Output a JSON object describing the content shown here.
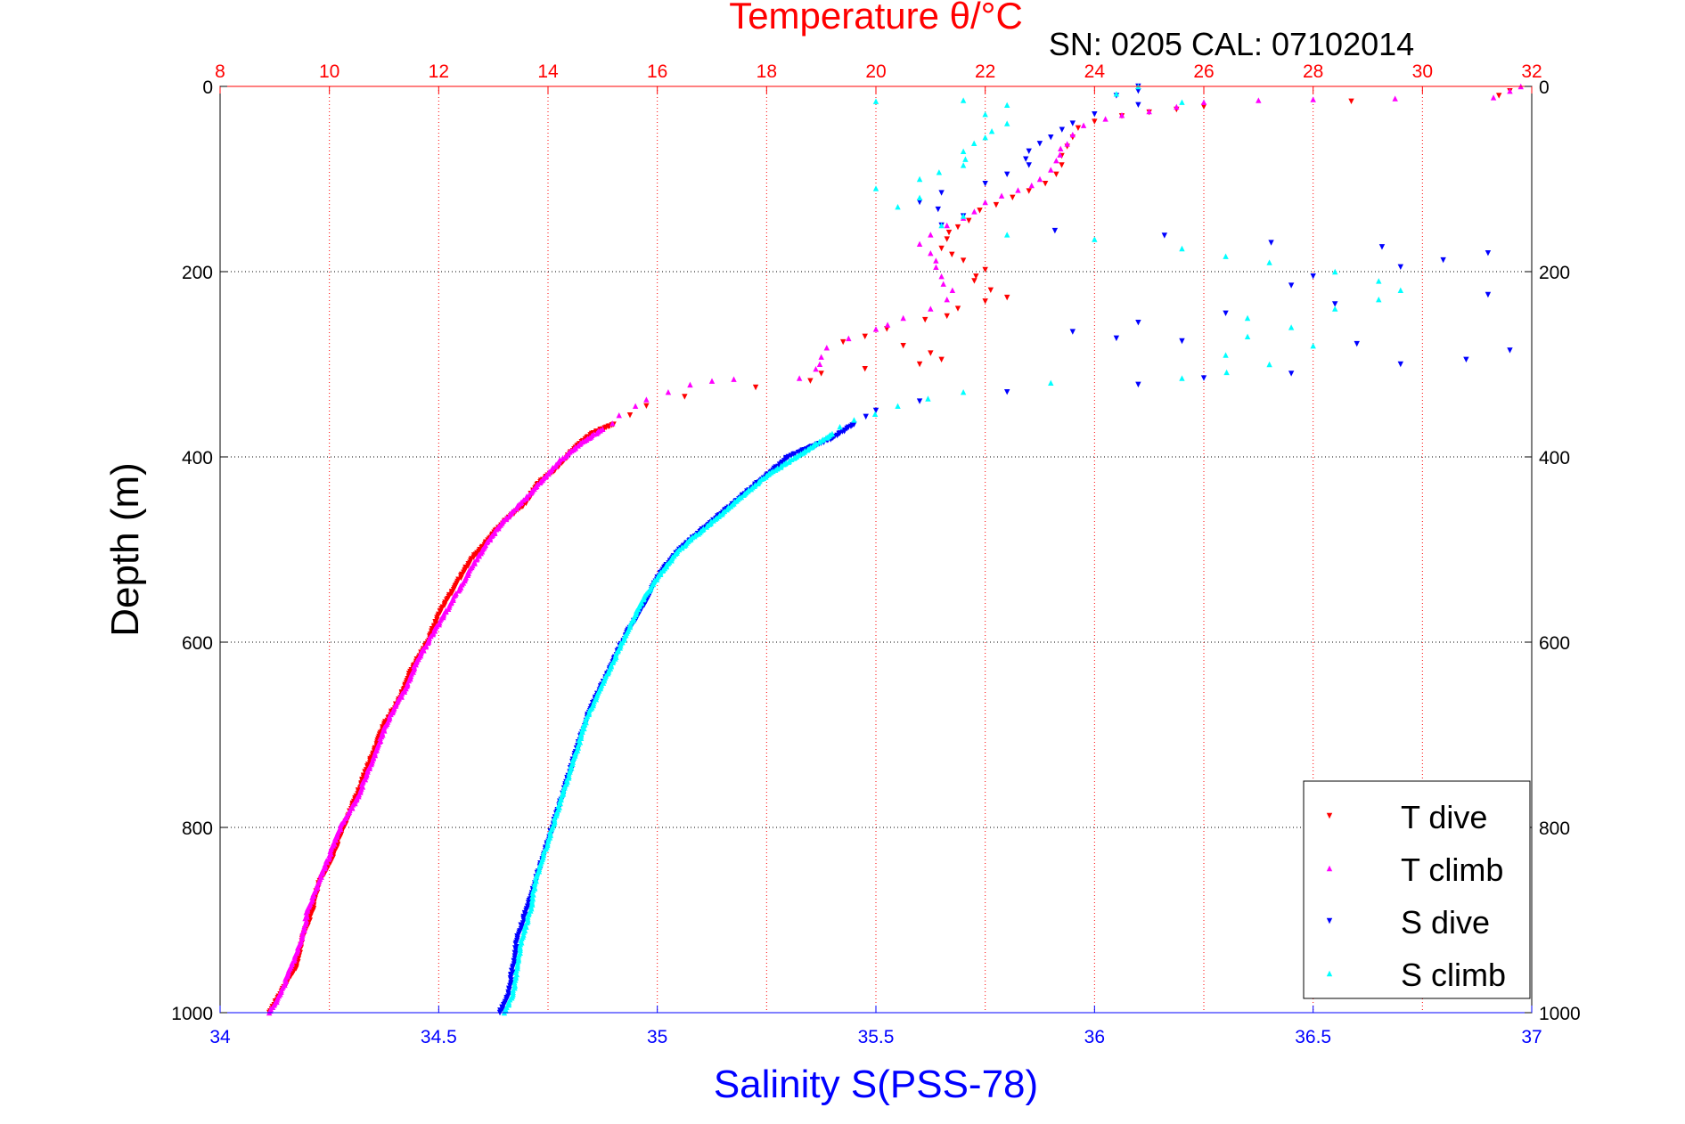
{
  "chart_data": {
    "type": "scatter",
    "title": "Temperature θ/°C",
    "subtitle": "SN: 0205  CAL: 07102014",
    "xlabel": "Salinity S(PSS-78)",
    "x2label": "Temperature θ/°C",
    "ylabel": "Depth (m)",
    "xlim": [
      34,
      37
    ],
    "x2lim": [
      8,
      32
    ],
    "ylim": [
      0,
      1000
    ],
    "y_reversed": true,
    "x_ticks": [
      "34",
      "34.5",
      "35",
      "35.5",
      "36",
      "36.5",
      "37"
    ],
    "x2_ticks": [
      "8",
      "10",
      "12",
      "14",
      "16",
      "18",
      "20",
      "22",
      "24",
      "26",
      "28",
      "30",
      "32"
    ],
    "y_ticks": [
      "0",
      "200",
      "400",
      "600",
      "800",
      "1000"
    ],
    "grid": true,
    "legend_position": "bottom-right",
    "colors": {
      "t_dive": "#ff0000",
      "t_climb": "#ff00ff",
      "s_dive": "#0000ff",
      "s_climb": "#00ffff",
      "top_axis": "#ff0000",
      "bottom_axis": "#0000ff"
    },
    "series": [
      {
        "name": "T dive",
        "axis": "temperature",
        "marker": "triangle-down",
        "color": "#ff0000",
        "points": [
          [
            31.6,
            5
          ],
          [
            31.4,
            10
          ],
          [
            26.0,
            22
          ],
          [
            25.5,
            25
          ],
          [
            25.0,
            28
          ],
          [
            24.5,
            32
          ],
          [
            24.0,
            38
          ],
          [
            23.7,
            45
          ],
          [
            23.6,
            55
          ],
          [
            23.5,
            65
          ],
          [
            23.4,
            75
          ],
          [
            23.4,
            85
          ],
          [
            23.3,
            95
          ],
          [
            23.1,
            105
          ],
          [
            22.8,
            113
          ],
          [
            22.5,
            120
          ],
          [
            22.2,
            128
          ],
          [
            21.9,
            134
          ],
          [
            21.7,
            145
          ],
          [
            21.5,
            152
          ],
          [
            21.3,
            165
          ],
          [
            21.2,
            175
          ],
          [
            21.6,
            188
          ],
          [
            22.0,
            198
          ],
          [
            21.8,
            210
          ],
          [
            22.1,
            220
          ],
          [
            22.4,
            228
          ],
          [
            22.0,
            232
          ],
          [
            21.5,
            240
          ],
          [
            21.3,
            248
          ],
          [
            20.9,
            252
          ],
          [
            20.2,
            262
          ],
          [
            19.8,
            270
          ],
          [
            19.4,
            276
          ],
          [
            20.5,
            280
          ],
          [
            21.0,
            288
          ],
          [
            21.2,
            295
          ],
          [
            20.8,
            300
          ],
          [
            19.8,
            305
          ],
          [
            19.0,
            310
          ],
          [
            18.8,
            318
          ],
          [
            17.8,
            325
          ],
          [
            16.5,
            335
          ],
          [
            15.8,
            345
          ],
          [
            15.5,
            355
          ],
          [
            15.2,
            365
          ],
          [
            14.8,
            375
          ],
          [
            14.5,
            390
          ],
          [
            14.2,
            410
          ],
          [
            13.8,
            430
          ],
          [
            13.6,
            450
          ],
          [
            13.2,
            470
          ],
          [
            12.9,
            490
          ],
          [
            12.6,
            510
          ],
          [
            12.3,
            540
          ],
          [
            12.0,
            570
          ],
          [
            11.8,
            600
          ],
          [
            11.5,
            630
          ],
          [
            11.3,
            660
          ],
          [
            11.0,
            690
          ],
          [
            10.8,
            720
          ],
          [
            10.6,
            750
          ],
          [
            10.4,
            780
          ],
          [
            10.2,
            810
          ],
          [
            10.0,
            840
          ],
          [
            9.8,
            860
          ],
          [
            9.7,
            890
          ],
          [
            9.5,
            920
          ],
          [
            9.4,
            950
          ],
          [
            9.1,
            980
          ],
          [
            8.9,
            1000
          ]
        ]
      },
      {
        "name": "T climb",
        "axis": "temperature",
        "marker": "triangle-up",
        "color": "#ff00ff",
        "points": [
          [
            31.8,
            0
          ],
          [
            31.6,
            5
          ],
          [
            31.3,
            12
          ],
          [
            29.5,
            13
          ],
          [
            28.0,
            14
          ],
          [
            27.0,
            15
          ],
          [
            26.0,
            17
          ],
          [
            25.5,
            22
          ],
          [
            25.0,
            27
          ],
          [
            24.5,
            31
          ],
          [
            24.2,
            35
          ],
          [
            23.8,
            42
          ],
          [
            23.6,
            52
          ],
          [
            23.5,
            62
          ],
          [
            23.3,
            80
          ],
          [
            23.2,
            90
          ],
          [
            23.0,
            100
          ],
          [
            22.6,
            112
          ],
          [
            22.3,
            118
          ],
          [
            22.0,
            125
          ],
          [
            21.8,
            135
          ],
          [
            21.6,
            142
          ],
          [
            21.3,
            150
          ],
          [
            21.0,
            160
          ],
          [
            20.8,
            170
          ],
          [
            21.0,
            180
          ],
          [
            21.1,
            195
          ],
          [
            21.2,
            205
          ],
          [
            21.4,
            220
          ],
          [
            21.3,
            230
          ],
          [
            21.0,
            240
          ],
          [
            20.5,
            250
          ],
          [
            20.0,
            262
          ],
          [
            19.5,
            272
          ],
          [
            19.1,
            282
          ],
          [
            19.0,
            292
          ],
          [
            18.9,
            305
          ],
          [
            18.6,
            315
          ],
          [
            17.4,
            316
          ],
          [
            17.0,
            318
          ],
          [
            16.6,
            322
          ],
          [
            16.2,
            330
          ],
          [
            15.8,
            338
          ],
          [
            15.6,
            345
          ],
          [
            15.3,
            355
          ],
          [
            15.0,
            370
          ],
          [
            14.6,
            385
          ],
          [
            14.2,
            405
          ],
          [
            13.9,
            425
          ],
          [
            13.5,
            450
          ],
          [
            13.1,
            475
          ],
          [
            12.8,
            500
          ],
          [
            12.5,
            530
          ],
          [
            12.2,
            560
          ],
          [
            11.9,
            590
          ],
          [
            11.6,
            620
          ],
          [
            11.4,
            650
          ],
          [
            11.1,
            680
          ],
          [
            10.9,
            710
          ],
          [
            10.7,
            740
          ],
          [
            10.5,
            770
          ],
          [
            10.2,
            800
          ],
          [
            10.0,
            830
          ],
          [
            9.8,
            860
          ],
          [
            9.6,
            890
          ],
          [
            9.5,
            920
          ],
          [
            9.3,
            950
          ],
          [
            9.1,
            980
          ],
          [
            8.9,
            1000
          ]
        ]
      },
      {
        "name": "S dive",
        "axis": "salinity",
        "marker": "triangle-down",
        "color": "#0000ff",
        "points": [
          [
            36.1,
            0
          ],
          [
            36.1,
            5
          ],
          [
            36.05,
            10
          ],
          [
            36.1,
            20
          ],
          [
            36.0,
            30
          ],
          [
            35.95,
            40
          ],
          [
            35.9,
            55
          ],
          [
            35.85,
            70
          ],
          [
            35.85,
            85
          ],
          [
            35.8,
            95
          ],
          [
            35.75,
            105
          ],
          [
            35.65,
            115
          ],
          [
            35.6,
            125
          ],
          [
            35.7,
            140
          ],
          [
            35.65,
            150
          ],
          [
            36.9,
            180
          ],
          [
            36.7,
            195
          ],
          [
            36.5,
            205
          ],
          [
            36.45,
            215
          ],
          [
            36.9,
            225
          ],
          [
            36.55,
            235
          ],
          [
            36.3,
            245
          ],
          [
            36.1,
            255
          ],
          [
            35.95,
            265
          ],
          [
            36.05,
            272
          ],
          [
            36.2,
            275
          ],
          [
            36.6,
            278
          ],
          [
            36.95,
            285
          ],
          [
            36.85,
            295
          ],
          [
            36.7,
            300
          ],
          [
            36.45,
            310
          ],
          [
            36.25,
            315
          ],
          [
            36.1,
            322
          ],
          [
            35.8,
            330
          ],
          [
            35.6,
            340
          ],
          [
            35.5,
            350
          ],
          [
            35.45,
            365
          ],
          [
            35.4,
            380
          ],
          [
            35.3,
            400
          ],
          [
            35.25,
            420
          ],
          [
            35.2,
            440
          ],
          [
            35.15,
            460
          ],
          [
            35.1,
            480
          ],
          [
            35.05,
            500
          ],
          [
            35.0,
            530
          ],
          [
            34.97,
            560
          ],
          [
            34.93,
            590
          ],
          [
            34.9,
            620
          ],
          [
            34.87,
            650
          ],
          [
            34.84,
            680
          ],
          [
            34.82,
            710
          ],
          [
            34.8,
            740
          ],
          [
            34.78,
            770
          ],
          [
            34.76,
            800
          ],
          [
            34.74,
            830
          ],
          [
            34.72,
            860
          ],
          [
            34.7,
            890
          ],
          [
            34.68,
            920
          ],
          [
            34.67,
            950
          ],
          [
            34.66,
            980
          ],
          [
            34.64,
            1000
          ]
        ]
      },
      {
        "name": "S climb",
        "axis": "salinity",
        "marker": "triangle-up",
        "color": "#00ffff",
        "points": [
          [
            36.1,
            0
          ],
          [
            36.05,
            8
          ],
          [
            35.7,
            15
          ],
          [
            35.5,
            16
          ],
          [
            36.2,
            17
          ],
          [
            35.8,
            20
          ],
          [
            35.75,
            30
          ],
          [
            35.8,
            40
          ],
          [
            35.75,
            55
          ],
          [
            35.7,
            70
          ],
          [
            35.7,
            85
          ],
          [
            35.6,
            100
          ],
          [
            35.5,
            110
          ],
          [
            35.6,
            120
          ],
          [
            35.55,
            130
          ],
          [
            35.7,
            140
          ],
          [
            35.65,
            150
          ],
          [
            35.8,
            160
          ],
          [
            36.0,
            165
          ],
          [
            36.2,
            175
          ],
          [
            36.4,
            190
          ],
          [
            36.55,
            200
          ],
          [
            36.65,
            210
          ],
          [
            36.7,
            220
          ],
          [
            36.65,
            230
          ],
          [
            36.55,
            240
          ],
          [
            36.35,
            250
          ],
          [
            36.45,
            260
          ],
          [
            36.35,
            270
          ],
          [
            36.5,
            280
          ],
          [
            36.3,
            290
          ],
          [
            36.4,
            300
          ],
          [
            36.2,
            315
          ],
          [
            35.9,
            320
          ],
          [
            35.7,
            330
          ],
          [
            35.55,
            345
          ],
          [
            35.45,
            360
          ],
          [
            35.4,
            375
          ],
          [
            35.35,
            390
          ],
          [
            35.25,
            420
          ],
          [
            35.2,
            440
          ],
          [
            35.15,
            460
          ],
          [
            35.1,
            480
          ],
          [
            35.05,
            500
          ],
          [
            35.0,
            530
          ],
          [
            34.96,
            560
          ],
          [
            34.93,
            590
          ],
          [
            34.9,
            620
          ],
          [
            34.87,
            650
          ],
          [
            34.84,
            680
          ],
          [
            34.82,
            710
          ],
          [
            34.8,
            740
          ],
          [
            34.78,
            770
          ],
          [
            34.76,
            800
          ],
          [
            34.74,
            830
          ],
          [
            34.72,
            860
          ],
          [
            34.71,
            890
          ],
          [
            34.69,
            920
          ],
          [
            34.68,
            950
          ],
          [
            34.67,
            980
          ],
          [
            34.65,
            1000
          ]
        ]
      }
    ]
  }
}
